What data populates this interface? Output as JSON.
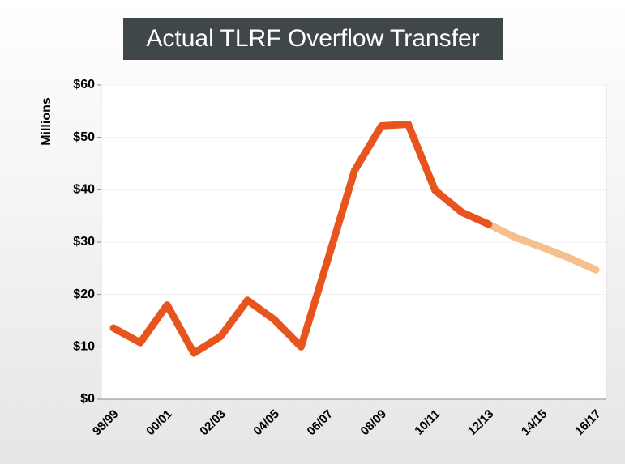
{
  "chart_data": {
    "type": "line",
    "title": "Actual TLRF Overflow Transfer",
    "y_label": "Millions",
    "categories": [
      "98/99",
      null,
      "00/01",
      null,
      "02/03",
      null,
      "04/05",
      null,
      "06/07",
      null,
      "08/09",
      null,
      "10/11",
      null,
      "12/13",
      null,
      "14/15",
      null,
      "16/17"
    ],
    "series": [
      {
        "color": "#e8541e",
        "values": [
          13.6,
          10.8,
          18,
          8.8,
          12,
          18.9,
          15.2,
          10,
          26.7,
          43.7,
          52.2,
          52.5,
          39.9,
          35.7,
          33.4,
          null,
          null,
          null,
          null
        ]
      },
      {
        "color": "#f6c08e",
        "values": [
          null,
          null,
          null,
          null,
          null,
          null,
          null,
          null,
          null,
          null,
          null,
          null,
          null,
          null,
          33.4,
          30.9,
          29,
          27,
          24.7
        ]
      }
    ],
    "ylim": [
      0,
      60
    ],
    "yticks": [
      {
        "value": 0,
        "label": "$0"
      },
      {
        "value": 10,
        "label": "$10"
      },
      {
        "value": 20,
        "label": "$20"
      },
      {
        "value": 30,
        "label": "$30"
      },
      {
        "value": 40,
        "label": "$40"
      },
      {
        "value": 50,
        "label": "$50"
      },
      {
        "value": 60,
        "label": "$60"
      }
    ],
    "grid": true
  }
}
